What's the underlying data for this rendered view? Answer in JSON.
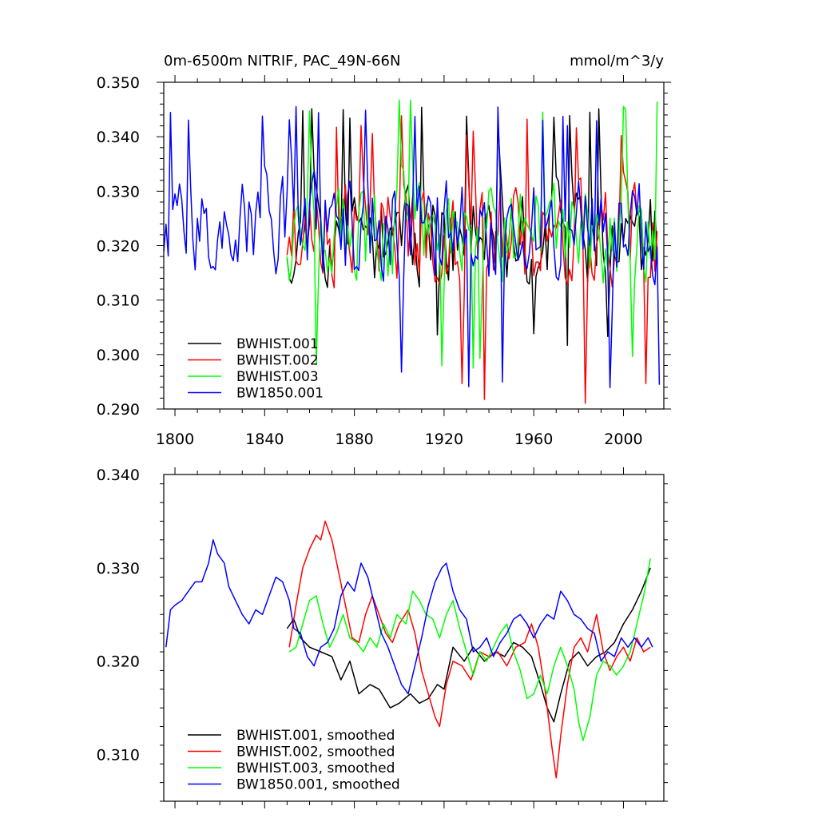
{
  "chart_data": [
    {
      "type": "line",
      "title": "0m-6500m NITRIF, PAC_49N-66N",
      "units": "mmol/m^3/y",
      "xlabel": "",
      "ylabel": "",
      "xlim": [
        1795,
        2018
      ],
      "ylim": [
        0.29,
        0.35
      ],
      "x_ticks": [
        1800,
        1840,
        1880,
        1920,
        1960,
        2000
      ],
      "x_tick_labels": [
        "1800",
        "1840",
        "1880",
        "1920",
        "1960",
        "2000"
      ],
      "y_ticks": [
        0.29,
        0.3,
        0.31,
        0.32,
        0.33,
        0.34,
        0.35
      ],
      "y_tick_labels": [
        "0.290",
        "0.300",
        "0.310",
        "0.320",
        "0.330",
        "0.340",
        "0.350"
      ],
      "legend_position": "bottom-left",
      "series": [
        {
          "name": "BWHIST.001",
          "color": "#000000",
          "x_start": 1850,
          "x_end": 2015,
          "mean": 0.3215,
          "amplitude": 0.0085,
          "seed": 11,
          "min": 0.301,
          "max": 0.346
        },
        {
          "name": "BWHIST.002",
          "color": "#ff0000",
          "x_start": 1850,
          "x_end": 2015,
          "mean": 0.3225,
          "amplitude": 0.0095,
          "seed": 23,
          "min": 0.291,
          "max": 0.344
        },
        {
          "name": "BWHIST.003",
          "color": "#00ff00",
          "x_start": 1850,
          "x_end": 2015,
          "mean": 0.322,
          "amplitude": 0.009,
          "seed": 37,
          "min": 0.297,
          "max": 0.348
        },
        {
          "name": "BW1850.001",
          "color": "#0000ff",
          "x_start": 1795,
          "x_end": 2016,
          "mean": 0.323,
          "amplitude": 0.0095,
          "seed": 53,
          "min": 0.293,
          "max": 0.346
        }
      ]
    },
    {
      "type": "line",
      "title": "",
      "xlabel": "",
      "ylabel": "",
      "xlim": [
        1795,
        2018
      ],
      "ylim": [
        0.305,
        0.34
      ],
      "x_ticks": [
        1800,
        1840,
        1880,
        1920,
        1960,
        2000
      ],
      "y_ticks": [
        0.31,
        0.32,
        0.33,
        0.34
      ],
      "y_tick_labels": [
        "0.310",
        "0.320",
        "0.330",
        "0.340"
      ],
      "legend_position": "bottom-left",
      "series": [
        {
          "name": "BWHIST.001, smoothed",
          "color": "#000000",
          "points": [
            [
              1850,
              0.3235
            ],
            [
              1853,
              0.3245
            ],
            [
              1856,
              0.3225
            ],
            [
              1860,
              0.3215
            ],
            [
              1865,
              0.321
            ],
            [
              1870,
              0.3205
            ],
            [
              1874,
              0.318
            ],
            [
              1878,
              0.32
            ],
            [
              1882,
              0.3165
            ],
            [
              1887,
              0.3175
            ],
            [
              1891,
              0.317
            ],
            [
              1896,
              0.315
            ],
            [
              1900,
              0.3155
            ],
            [
              1905,
              0.3165
            ],
            [
              1909,
              0.3155
            ],
            [
              1913,
              0.316
            ],
            [
              1917,
              0.3175
            ],
            [
              1920,
              0.317
            ],
            [
              1924,
              0.3215
            ],
            [
              1929,
              0.32
            ],
            [
              1933,
              0.3215
            ],
            [
              1938,
              0.32
            ],
            [
              1943,
              0.321
            ],
            [
              1947,
              0.3205
            ],
            [
              1951,
              0.322
            ],
            [
              1955,
              0.3215
            ],
            [
              1959,
              0.3205
            ],
            [
              1963,
              0.3175
            ],
            [
              1966,
              0.315
            ],
            [
              1969,
              0.3135
            ],
            [
              1972,
              0.3165
            ],
            [
              1976,
              0.32
            ],
            [
              1980,
              0.321
            ],
            [
              1984,
              0.3195
            ],
            [
              1988,
              0.3205
            ],
            [
              1992,
              0.321
            ],
            [
              1996,
              0.322
            ],
            [
              2000,
              0.324
            ],
            [
              2004,
              0.3255
            ],
            [
              2008,
              0.3275
            ],
            [
              2012,
              0.33
            ]
          ]
        },
        {
          "name": "BWHIST.002, smoothed",
          "color": "#ff0000",
          "points": [
            [
              1851,
              0.3215
            ],
            [
              1854,
              0.326
            ],
            [
              1857,
              0.33
            ],
            [
              1860,
              0.332
            ],
            [
              1863,
              0.3335
            ],
            [
              1865,
              0.333
            ],
            [
              1867,
              0.335
            ],
            [
              1870,
              0.333
            ],
            [
              1873,
              0.3295
            ],
            [
              1876,
              0.326
            ],
            [
              1879,
              0.3225
            ],
            [
              1882,
              0.322
            ],
            [
              1885,
              0.325
            ],
            [
              1888,
              0.327
            ],
            [
              1891,
              0.325
            ],
            [
              1894,
              0.323
            ],
            [
              1897,
              0.322
            ],
            [
              1900,
              0.324
            ],
            [
              1904,
              0.3255
            ],
            [
              1907,
              0.323
            ],
            [
              1910,
              0.319
            ],
            [
              1913,
              0.3165
            ],
            [
              1916,
              0.314
            ],
            [
              1918,
              0.313
            ],
            [
              1921,
              0.3175
            ],
            [
              1924,
              0.32
            ],
            [
              1928,
              0.3195
            ],
            [
              1932,
              0.318
            ],
            [
              1936,
              0.321
            ],
            [
              1940,
              0.3205
            ],
            [
              1944,
              0.321
            ],
            [
              1948,
              0.3195
            ],
            [
              1952,
              0.3215
            ],
            [
              1956,
              0.322
            ],
            [
              1959,
              0.324
            ],
            [
              1962,
              0.3215
            ],
            [
              1965,
              0.317
            ],
            [
              1968,
              0.311
            ],
            [
              1970,
              0.3075
            ],
            [
              1972,
              0.312
            ],
            [
              1975,
              0.3175
            ],
            [
              1978,
              0.3215
            ],
            [
              1981,
              0.3225
            ],
            [
              1984,
              0.321
            ],
            [
              1986,
              0.323
            ],
            [
              1988,
              0.325
            ],
            [
              1991,
              0.321
            ],
            [
              1994,
              0.319
            ],
            [
              1997,
              0.3205
            ],
            [
              2000,
              0.3215
            ],
            [
              2003,
              0.32
            ],
            [
              2006,
              0.3225
            ],
            [
              2009,
              0.321
            ],
            [
              2012,
              0.3215
            ]
          ]
        },
        {
          "name": "BWHIST.003, smoothed",
          "color": "#00ff00",
          "points": [
            [
              1851,
              0.321
            ],
            [
              1854,
              0.3215
            ],
            [
              1857,
              0.324
            ],
            [
              1860,
              0.3265
            ],
            [
              1863,
              0.327
            ],
            [
              1866,
              0.324
            ],
            [
              1869,
              0.3215
            ],
            [
              1872,
              0.323
            ],
            [
              1875,
              0.325
            ],
            [
              1878,
              0.3225
            ],
            [
              1881,
              0.322
            ],
            [
              1884,
              0.321
            ],
            [
              1887,
              0.3225
            ],
            [
              1890,
              0.3215
            ],
            [
              1893,
              0.324
            ],
            [
              1896,
              0.3225
            ],
            [
              1899,
              0.325
            ],
            [
              1903,
              0.324
            ],
            [
              1906,
              0.3275
            ],
            [
              1909,
              0.3265
            ],
            [
              1912,
              0.325
            ],
            [
              1915,
              0.3245
            ],
            [
              1918,
              0.3225
            ],
            [
              1921,
              0.325
            ],
            [
              1924,
              0.3265
            ],
            [
              1927,
              0.3235
            ],
            [
              1930,
              0.321
            ],
            [
              1933,
              0.3185
            ],
            [
              1936,
              0.321
            ],
            [
              1939,
              0.32
            ],
            [
              1942,
              0.3215
            ],
            [
              1945,
              0.323
            ],
            [
              1948,
              0.324
            ],
            [
              1951,
              0.321
            ],
            [
              1954,
              0.319
            ],
            [
              1957,
              0.316
            ],
            [
              1960,
              0.3165
            ],
            [
              1963,
              0.3185
            ],
            [
              1966,
              0.3165
            ],
            [
              1969,
              0.3195
            ],
            [
              1972,
              0.3215
            ],
            [
              1975,
              0.3195
            ],
            [
              1978,
              0.317
            ],
            [
              1980,
              0.3135
            ],
            [
              1982,
              0.3115
            ],
            [
              1985,
              0.314
            ],
            [
              1988,
              0.3185
            ],
            [
              1991,
              0.32
            ],
            [
              1994,
              0.3195
            ],
            [
              1997,
              0.3185
            ],
            [
              2000,
              0.3195
            ],
            [
              2003,
              0.321
            ],
            [
              2006,
              0.324
            ],
            [
              2009,
              0.327
            ],
            [
              2012,
              0.331
            ]
          ]
        },
        {
          "name": "BW1850.001, smoothed",
          "color": "#0000ff",
          "points": [
            [
              1796,
              0.3215
            ],
            [
              1798,
              0.3255
            ],
            [
              1800,
              0.326
            ],
            [
              1803,
              0.3265
            ],
            [
              1806,
              0.3275
            ],
            [
              1809,
              0.3285
            ],
            [
              1812,
              0.3285
            ],
            [
              1815,
              0.3305
            ],
            [
              1817,
              0.333
            ],
            [
              1819,
              0.3315
            ],
            [
              1822,
              0.3305
            ],
            [
              1824,
              0.328
            ],
            [
              1827,
              0.3265
            ],
            [
              1830,
              0.325
            ],
            [
              1833,
              0.324
            ],
            [
              1836,
              0.3255
            ],
            [
              1839,
              0.325
            ],
            [
              1842,
              0.327
            ],
            [
              1845,
              0.329
            ],
            [
              1848,
              0.3285
            ],
            [
              1851,
              0.3265
            ],
            [
              1853,
              0.3235
            ],
            [
              1856,
              0.323
            ],
            [
              1859,
              0.3205
            ],
            [
              1862,
              0.3195
            ],
            [
              1865,
              0.3215
            ],
            [
              1868,
              0.322
            ],
            [
              1871,
              0.3235
            ],
            [
              1874,
              0.327
            ],
            [
              1877,
              0.3285
            ],
            [
              1880,
              0.3275
            ],
            [
              1883,
              0.3305
            ],
            [
              1886,
              0.329
            ],
            [
              1889,
              0.326
            ],
            [
              1892,
              0.323
            ],
            [
              1895,
              0.3215
            ],
            [
              1898,
              0.3195
            ],
            [
              1901,
              0.3175
            ],
            [
              1904,
              0.3165
            ],
            [
              1907,
              0.3195
            ],
            [
              1910,
              0.3225
            ],
            [
              1913,
              0.326
            ],
            [
              1916,
              0.3285
            ],
            [
              1919,
              0.33
            ],
            [
              1921,
              0.3305
            ],
            [
              1924,
              0.3275
            ],
            [
              1927,
              0.3255
            ],
            [
              1930,
              0.3245
            ],
            [
              1933,
              0.321
            ],
            [
              1936,
              0.3215
            ],
            [
              1939,
              0.3225
            ],
            [
              1942,
              0.3205
            ],
            [
              1945,
              0.322
            ],
            [
              1948,
              0.323
            ],
            [
              1951,
              0.3245
            ],
            [
              1954,
              0.325
            ],
            [
              1957,
              0.324
            ],
            [
              1960,
              0.3225
            ],
            [
              1963,
              0.324
            ],
            [
              1966,
              0.325
            ],
            [
              1969,
              0.3245
            ],
            [
              1972,
              0.3275
            ],
            [
              1975,
              0.3265
            ],
            [
              1978,
              0.325
            ],
            [
              1981,
              0.3245
            ],
            [
              1984,
              0.3235
            ],
            [
              1987,
              0.323
            ],
            [
              1990,
              0.32
            ],
            [
              1993,
              0.321
            ],
            [
              1996,
              0.3205
            ],
            [
              1999,
              0.3225
            ],
            [
              2002,
              0.3215
            ],
            [
              2005,
              0.3225
            ],
            [
              2008,
              0.3215
            ],
            [
              2011,
              0.3225
            ],
            [
              2013,
              0.3215
            ]
          ]
        }
      ]
    }
  ]
}
